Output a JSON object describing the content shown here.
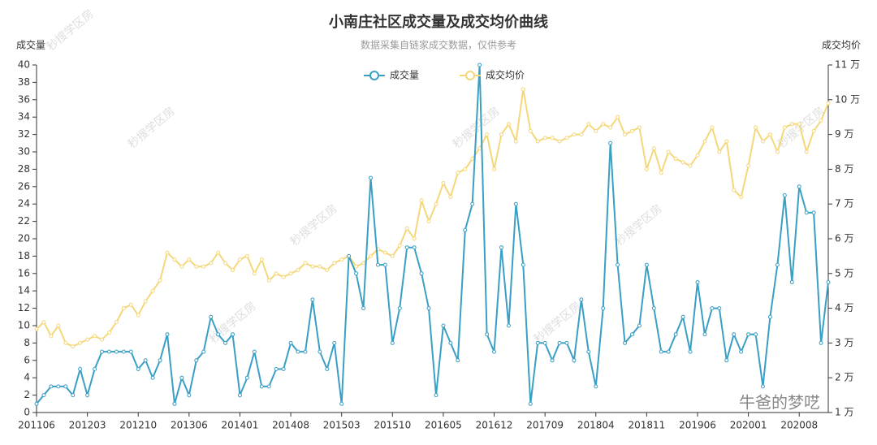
{
  "chart_data": {
    "type": "line",
    "title": "小南庄社区成交量及成交均价曲线",
    "subtitle": "数据采集自链家成交数据，仅供参考",
    "y_label": "成交量",
    "y2_label": "成交均价",
    "watermark": "秒搜学区房",
    "footer": "牛爸的梦呓",
    "legend": "top",
    "categories": [
      "201106",
      null,
      null,
      null,
      null,
      null,
      null,
      "201203",
      null,
      null,
      null,
      null,
      null,
      null,
      "201210",
      null,
      null,
      null,
      null,
      null,
      null,
      "201306",
      null,
      null,
      null,
      null,
      null,
      null,
      "201401",
      null,
      null,
      null,
      null,
      null,
      null,
      "201408",
      null,
      null,
      null,
      null,
      null,
      null,
      "201503",
      null,
      null,
      null,
      null,
      null,
      null,
      "201510",
      null,
      null,
      null,
      null,
      null,
      null,
      "201605",
      null,
      null,
      null,
      null,
      null,
      null,
      "201612",
      null,
      null,
      null,
      null,
      null,
      null,
      "201709",
      null,
      null,
      null,
      null,
      null,
      null,
      "201804",
      null,
      null,
      null,
      null,
      null,
      null,
      "201811",
      null,
      null,
      null,
      null,
      null,
      null,
      "201906",
      null,
      null,
      null,
      null,
      null,
      null,
      "202001",
      null,
      null,
      null,
      null,
      null,
      null,
      "202008",
      null,
      null,
      null,
      null
    ],
    "series": [
      {
        "name": "成交量",
        "color": "#3a9fc4",
        "axis": "y",
        "values": [
          1,
          2,
          3,
          3,
          3,
          2,
          5,
          2,
          5,
          7,
          7,
          7,
          7,
          7,
          5,
          6,
          4,
          6,
          9,
          1,
          4,
          2,
          6,
          7,
          11,
          9,
          8,
          9,
          2,
          4,
          7,
          3,
          3,
          5,
          5,
          8,
          7,
          7,
          13,
          7,
          5,
          8,
          1,
          18,
          16,
          12,
          27,
          17,
          17,
          8,
          12,
          19,
          19,
          16,
          12,
          2,
          10,
          8,
          6,
          21,
          24,
          40,
          9,
          7,
          19,
          10,
          24,
          17,
          1,
          8,
          8,
          6,
          8,
          8,
          6,
          13,
          7,
          3,
          12,
          31,
          17,
          8,
          9,
          10,
          17,
          12,
          7,
          7,
          9,
          11,
          7,
          15,
          9,
          12,
          12,
          6,
          9,
          7,
          9,
          9,
          3,
          11,
          17,
          25,
          15,
          26,
          23,
          23,
          8,
          15
        ]
      },
      {
        "name": "成交均价",
        "color": "#f5d77a",
        "axis": "y2",
        "values": [
          3.4,
          3.6,
          3.2,
          3.5,
          3.0,
          2.9,
          3.0,
          3.1,
          3.2,
          3.1,
          3.3,
          3.6,
          4.0,
          4.1,
          3.8,
          4.2,
          4.5,
          4.8,
          5.6,
          5.4,
          5.2,
          5.4,
          5.2,
          5.2,
          5.3,
          5.6,
          5.3,
          5.1,
          5.4,
          5.5,
          5.0,
          5.4,
          4.8,
          5.0,
          4.9,
          5.0,
          5.1,
          5.3,
          5.2,
          5.2,
          5.1,
          5.3,
          5.4,
          5.5,
          5.2,
          5.3,
          5.5,
          5.7,
          5.6,
          5.5,
          5.8,
          6.3,
          6.0,
          7.1,
          6.5,
          7.0,
          7.6,
          7.2,
          7.9,
          8.0,
          8.3,
          8.6,
          9.0,
          8.0,
          9.0,
          9.3,
          8.8,
          10.3,
          9.1,
          8.8,
          8.9,
          8.9,
          8.8,
          8.9,
          9.0,
          9.0,
          9.3,
          9.1,
          9.3,
          9.2,
          9.5,
          9.0,
          9.1,
          9.2,
          8.0,
          8.6,
          7.9,
          8.5,
          8.3,
          8.2,
          8.1,
          8.4,
          8.8,
          9.2,
          8.5,
          8.8,
          7.4,
          7.2,
          8.1,
          9.2,
          8.8,
          9.0,
          8.5,
          9.2,
          9.3,
          9.3,
          8.5,
          9.1,
          9.4,
          9.9
        ]
      }
    ],
    "ylim": [
      0,
      40
    ],
    "yticks": [
      0,
      2,
      4,
      6,
      8,
      10,
      12,
      14,
      16,
      18,
      20,
      22,
      24,
      26,
      28,
      30,
      32,
      34,
      36,
      38,
      40
    ],
    "y2lim": [
      1,
      11
    ],
    "y2ticks": [
      {
        "value": 1,
        "label": "1 万"
      },
      {
        "value": 2,
        "label": "2 万"
      },
      {
        "value": 3,
        "label": "3 万"
      },
      {
        "value": 4,
        "label": "4 万"
      },
      {
        "value": 5,
        "label": "5 万"
      },
      {
        "value": 6,
        "label": "6 万"
      },
      {
        "value": 7,
        "label": "7 万"
      },
      {
        "value": 8,
        "label": "8 万"
      },
      {
        "value": 9,
        "label": "9 万"
      },
      {
        "value": 10,
        "label": "10 万"
      },
      {
        "value": 11,
        "label": "11 万"
      }
    ],
    "grid": false
  }
}
